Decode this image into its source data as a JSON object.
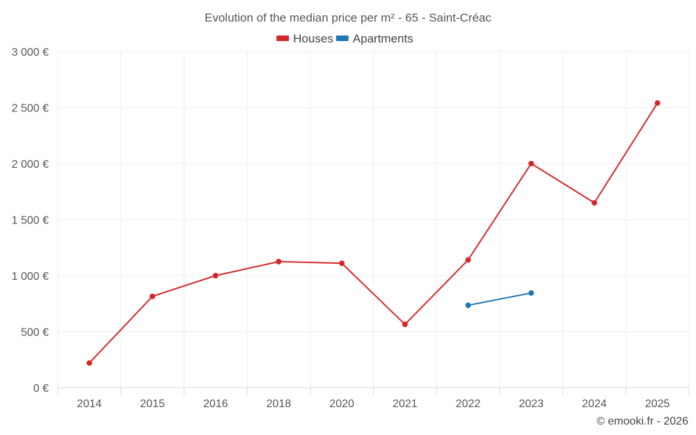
{
  "chart_data": {
    "type": "line",
    "title": "Evolution of the median price per m² - 65 - Saint-Créac",
    "categories": [
      "2014",
      "2015",
      "2016",
      "2018",
      "2020",
      "2021",
      "2022",
      "2023",
      "2024",
      "2025"
    ],
    "y_ticks": [
      "0 €",
      "500 €",
      "1 000 €",
      "1 500 €",
      "2 000 €",
      "2 500 €",
      "3 000 €"
    ],
    "ylim": [
      0,
      3000
    ],
    "y_step": 500,
    "grid": true,
    "legend_position": "top-center",
    "series": [
      {
        "name": "Houses",
        "color": "#d62728",
        "values": [
          220,
          815,
          1000,
          1125,
          1110,
          565,
          1140,
          2000,
          1650,
          2540
        ]
      },
      {
        "name": "Apartments",
        "color": "#1f77b4",
        "values": [
          null,
          null,
          null,
          null,
          null,
          null,
          735,
          845,
          null,
          null
        ]
      }
    ]
  },
  "credit": "© emooki.fr - 2026"
}
